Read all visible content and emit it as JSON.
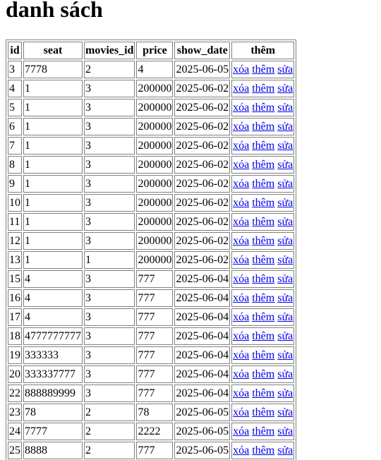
{
  "page": {
    "title": "danh sách"
  },
  "table": {
    "headers": [
      "id",
      "seat",
      "movies_id",
      "price",
      "show_date",
      "thêm"
    ],
    "action_labels": {
      "delete": "xóa",
      "add": "thêm",
      "edit": "sửa"
    },
    "rows": [
      {
        "id": "3",
        "seat": "7778",
        "movies_id": "2",
        "price": "4",
        "show_date": "2025-06-05"
      },
      {
        "id": "4",
        "seat": "1",
        "movies_id": "3",
        "price": "200000",
        "show_date": "2025-06-02"
      },
      {
        "id": "5",
        "seat": "1",
        "movies_id": "3",
        "price": "200000",
        "show_date": "2025-06-02"
      },
      {
        "id": "6",
        "seat": "1",
        "movies_id": "3",
        "price": "200000",
        "show_date": "2025-06-02"
      },
      {
        "id": "7",
        "seat": "1",
        "movies_id": "3",
        "price": "200000",
        "show_date": "2025-06-02"
      },
      {
        "id": "8",
        "seat": "1",
        "movies_id": "3",
        "price": "200000",
        "show_date": "2025-06-02"
      },
      {
        "id": "9",
        "seat": "1",
        "movies_id": "3",
        "price": "200000",
        "show_date": "2025-06-02"
      },
      {
        "id": "10",
        "seat": "1",
        "movies_id": "3",
        "price": "200000",
        "show_date": "2025-06-02"
      },
      {
        "id": "11",
        "seat": "1",
        "movies_id": "3",
        "price": "200000",
        "show_date": "2025-06-02"
      },
      {
        "id": "12",
        "seat": "1",
        "movies_id": "3",
        "price": "200000",
        "show_date": "2025-06-02"
      },
      {
        "id": "13",
        "seat": "1",
        "movies_id": "1",
        "price": "200000",
        "show_date": "2025-06-02"
      },
      {
        "id": "15",
        "seat": "4",
        "movies_id": "3",
        "price": "777",
        "show_date": "2025-06-04"
      },
      {
        "id": "16",
        "seat": "4",
        "movies_id": "3",
        "price": "777",
        "show_date": "2025-06-04"
      },
      {
        "id": "17",
        "seat": "4",
        "movies_id": "3",
        "price": "777",
        "show_date": "2025-06-04"
      },
      {
        "id": "18",
        "seat": "4777777777",
        "movies_id": "3",
        "price": "777",
        "show_date": "2025-06-04"
      },
      {
        "id": "19",
        "seat": "333333",
        "movies_id": "3",
        "price": "777",
        "show_date": "2025-06-04"
      },
      {
        "id": "20",
        "seat": "333337777",
        "movies_id": "3",
        "price": "777",
        "show_date": "2025-06-04"
      },
      {
        "id": "22",
        "seat": "888889999",
        "movies_id": "3",
        "price": "777",
        "show_date": "2025-06-04"
      },
      {
        "id": "23",
        "seat": "78",
        "movies_id": "2",
        "price": "78",
        "show_date": "2025-06-05"
      },
      {
        "id": "24",
        "seat": "7777",
        "movies_id": "2",
        "price": "2222",
        "show_date": "2025-06-05"
      },
      {
        "id": "25",
        "seat": "8888",
        "movies_id": "2",
        "price": "777",
        "show_date": "2025-06-05"
      }
    ]
  },
  "colors": {
    "link": "#0000ee",
    "border": "#808080",
    "background": "#ffffff",
    "text": "#000000"
  }
}
